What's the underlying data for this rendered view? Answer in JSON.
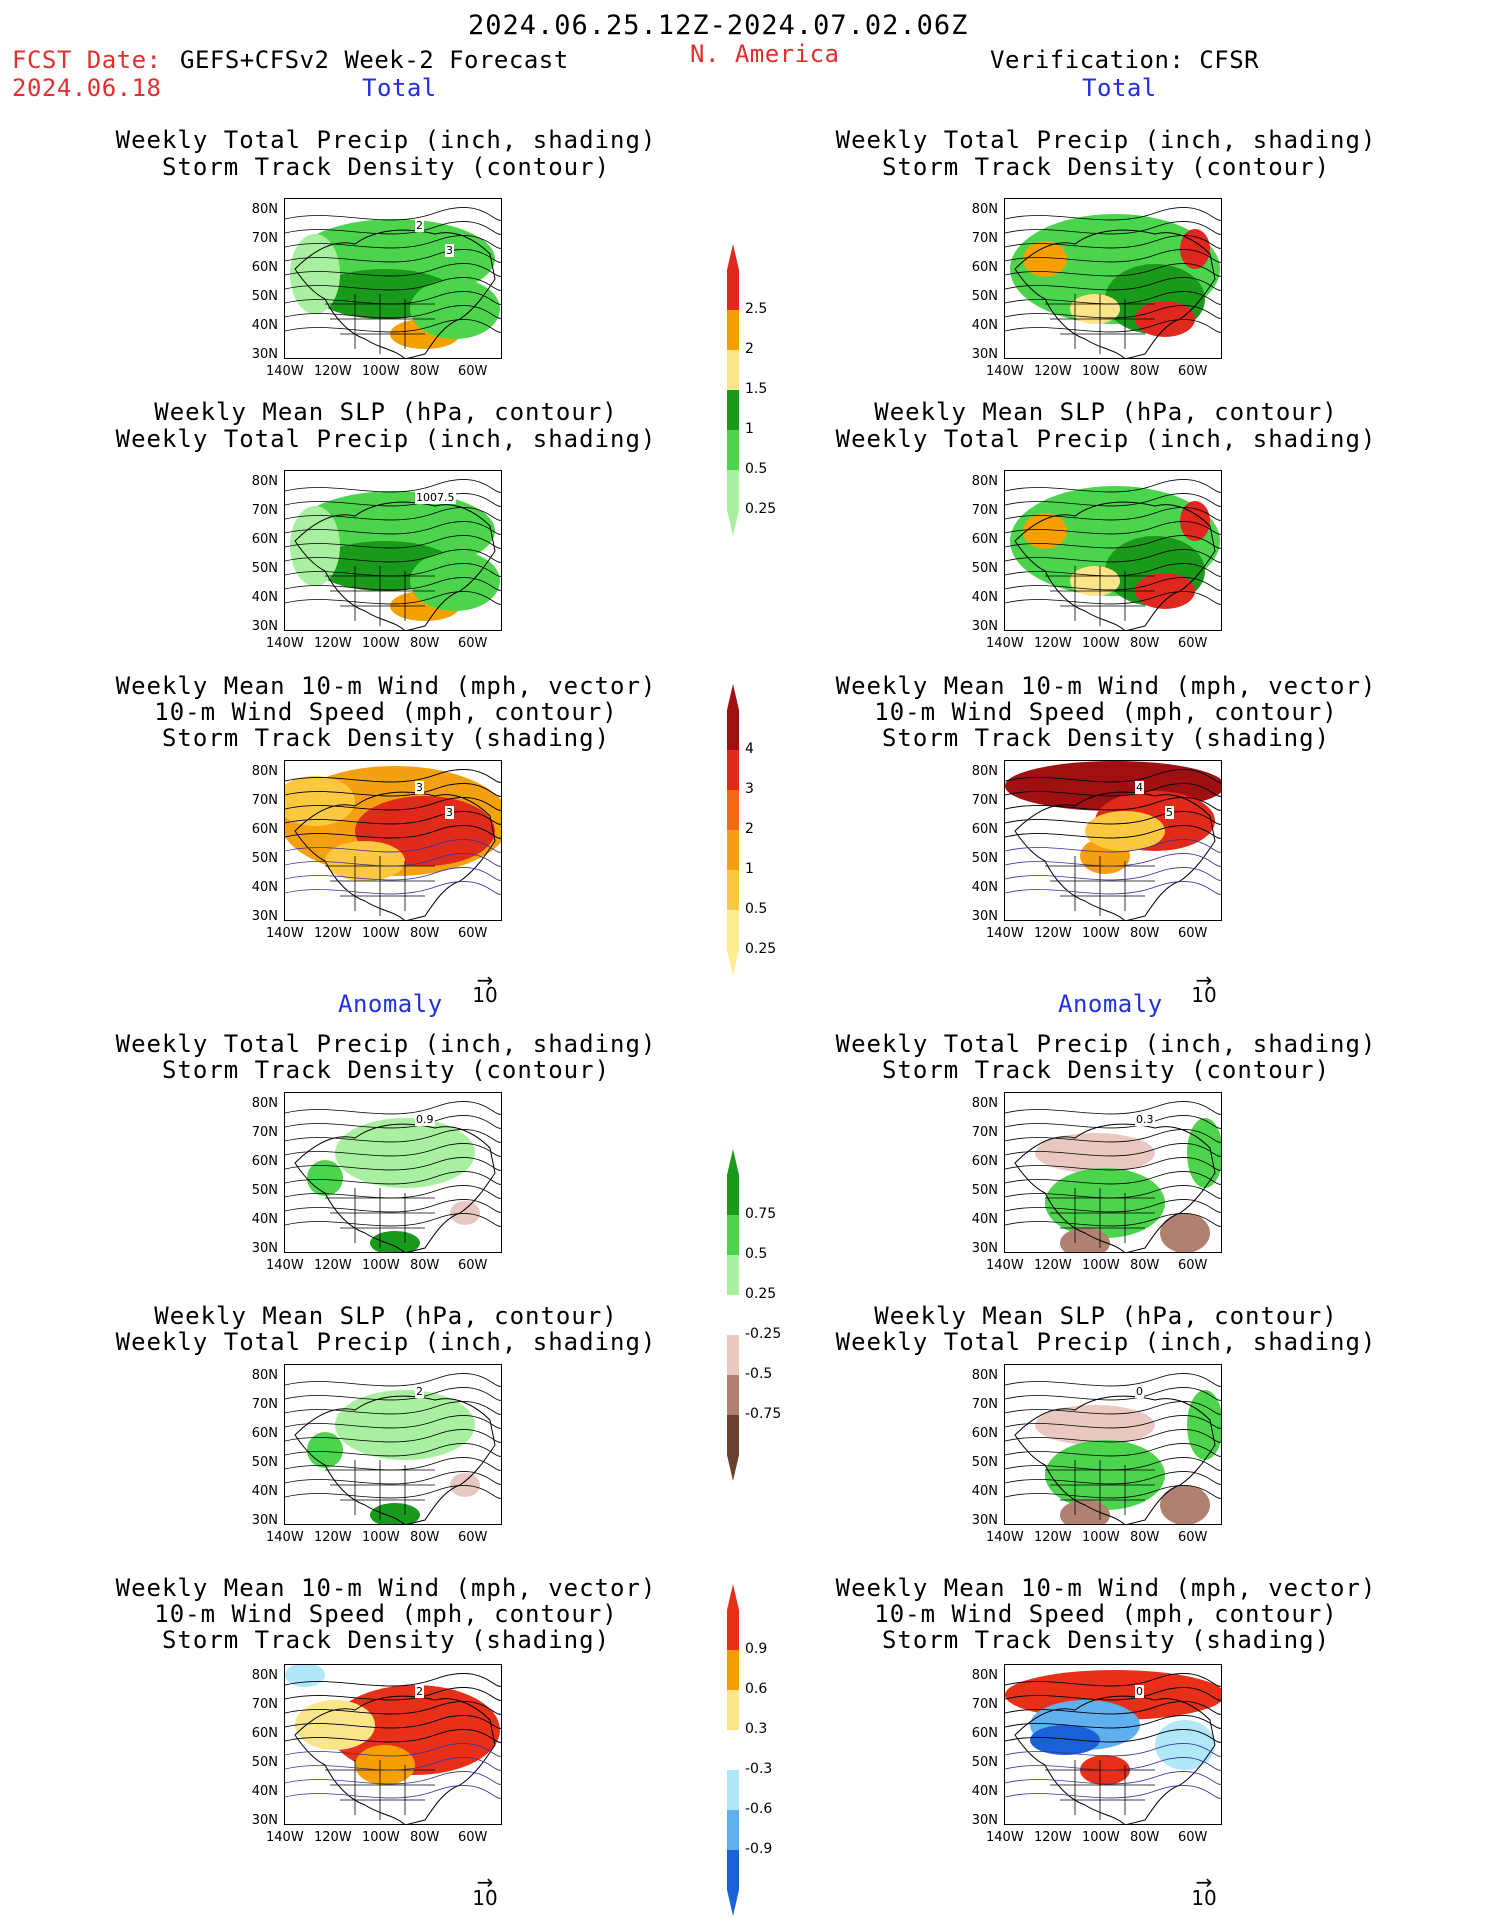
{
  "header": {
    "period": "2024.06.25.12Z-2024.07.02.06Z",
    "fcst_label": "FCST Date:",
    "fcst_date": "2024.06.18",
    "model": "GEFS+CFSv2 Week-2 Forecast",
    "region": "N. America",
    "verification": "Verification: CFSR"
  },
  "sections": {
    "total": "Total",
    "anomaly": "Anomaly"
  },
  "panel_titles": {
    "precip_storm": [
      "Weekly Total Precip (inch, shading)",
      "Storm Track Density (contour)"
    ],
    "slp_precip": [
      "Weekly Mean SLP (hPa, contour)",
      "Weekly Total Precip (inch, shading)"
    ],
    "wind_storm": [
      "Weekly Mean 10-m Wind (mph, vector)",
      "10-m Wind Speed (mph, contour)",
      "Storm Track Density (shading)"
    ]
  },
  "axes": {
    "lat_ticks": [
      "80N",
      "70N",
      "60N",
      "50N",
      "40N",
      "30N"
    ],
    "lon_ticks": [
      "140W",
      "120W",
      "100W",
      "80W",
      "60W"
    ]
  },
  "map_labels": {
    "left_total_precip": [
      "2",
      "3"
    ],
    "left_total_slp": [
      "1007.5"
    ],
    "left_total_wind": [
      "3",
      "3"
    ],
    "right_total_wind": [
      "4",
      "5"
    ],
    "left_anom_precip": [
      "0.9"
    ],
    "right_anom_precip": [
      "0.3"
    ],
    "left_anom_slp": [
      "2"
    ],
    "right_anom_slp": [
      "0"
    ],
    "left_anom_wind": [
      "2"
    ],
    "right_anom_wind": [
      "0"
    ]
  },
  "vector_ref": "10",
  "colorbars": {
    "precip_total": {
      "labels": [
        "2.5",
        "2",
        "1.5",
        "1",
        "0.5",
        "0.25"
      ],
      "colors": [
        "#e0281e",
        "#f5a000",
        "#fde68a",
        "#1a9a1a",
        "#4cd44c",
        "#a8f0a0"
      ]
    },
    "storm_total": {
      "labels": [
        "4",
        "3",
        "2",
        "1",
        "0.5",
        "0.25"
      ],
      "colors": [
        "#a01010",
        "#e02a1a",
        "#f56a10",
        "#f5a010",
        "#fcc840",
        "#fdee90"
      ]
    },
    "precip_anom": {
      "labels": [
        "0.75",
        "0.5",
        "0.25",
        "-0.25",
        "-0.5",
        "-0.75"
      ],
      "colors": [
        "#1a9a1a",
        "#4cd44c",
        "#a8f0a0",
        "#ffffff",
        "#e8c8c0",
        "#b08070",
        "#6a4030"
      ]
    },
    "storm_anom": {
      "labels": [
        "0.9",
        "0.6",
        "0.3",
        "-0.3",
        "-0.6",
        "-0.9"
      ],
      "colors": [
        "#e83018",
        "#f5a000",
        "#fde68a",
        "#ffffff",
        "#b0e8f8",
        "#60b0f0",
        "#1a60d8"
      ]
    }
  },
  "colors": {
    "red_text": "#e03030",
    "blue_text": "#2030e0"
  }
}
